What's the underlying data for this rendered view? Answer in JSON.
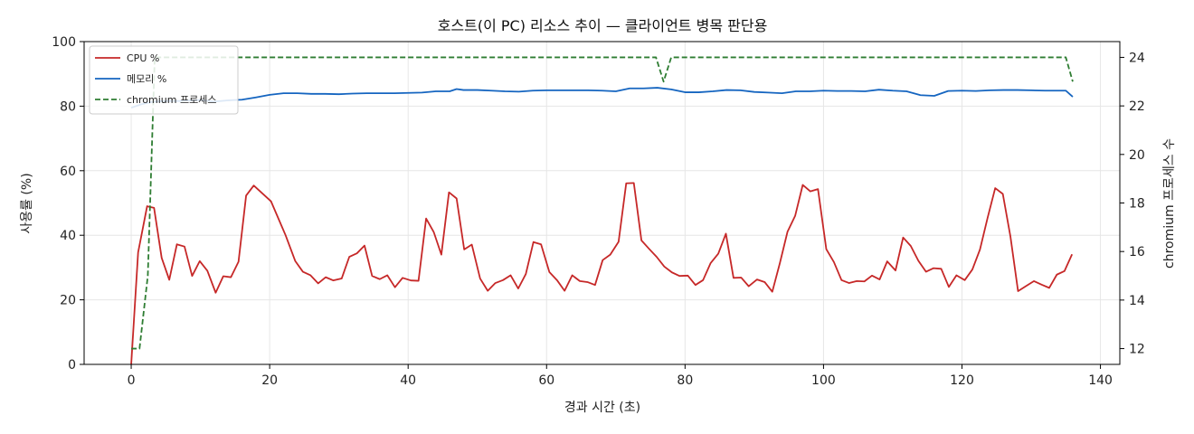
{
  "chart_data": {
    "type": "line",
    "title": "호스트(이 PC) 리소스 추이 — 클라이언트 병목 판단용",
    "xlabel": "경과 시간 (초)",
    "ylabel": "사용률 (%)",
    "y2label": "chromium 프로세스 수",
    "xlim": [
      -6.8,
      142.8
    ],
    "ylim": [
      0,
      100
    ],
    "y2lim": [
      11.35,
      24.65
    ],
    "xticks": [
      "0",
      "20",
      "40",
      "60",
      "80",
      "100",
      "120",
      "140"
    ],
    "yticks": [
      "0",
      "20",
      "40",
      "60",
      "80",
      "100"
    ],
    "y2ticks": [
      "12",
      "14",
      "16",
      "18",
      "20",
      "22",
      "24"
    ],
    "grid": true,
    "legend_position": "top-left",
    "series": [
      {
        "name": "CPU %",
        "axis": "left",
        "color": "#c62828",
        "style": "solid",
        "points": [
          [
            0,
            0
          ],
          [
            1,
            34.7
          ],
          [
            2.3,
            49
          ],
          [
            3.3,
            48.5
          ],
          [
            4.4,
            33
          ],
          [
            5.5,
            26.2
          ],
          [
            6.6,
            37.2
          ],
          [
            7.7,
            36.5
          ],
          [
            8.8,
            27.4
          ],
          [
            9.9,
            32
          ],
          [
            11,
            29
          ],
          [
            12.2,
            22.2
          ],
          [
            13.3,
            27.3
          ],
          [
            14.4,
            27
          ],
          [
            15.5,
            31.8
          ],
          [
            16.6,
            52.3
          ],
          [
            17.7,
            55.4
          ],
          [
            20.2,
            50.5
          ],
          [
            22.3,
            40
          ],
          [
            23.7,
            32
          ],
          [
            24.8,
            28.7
          ],
          [
            25.9,
            27.6
          ],
          [
            27,
            25.1
          ],
          [
            28.1,
            27
          ],
          [
            29.2,
            26
          ],
          [
            30.4,
            26.6
          ],
          [
            31.5,
            33.3
          ],
          [
            32.6,
            34.4
          ],
          [
            33.7,
            36.8
          ],
          [
            34.8,
            27.4
          ],
          [
            35.9,
            26.4
          ],
          [
            37,
            27.6
          ],
          [
            38.1,
            23.9
          ],
          [
            39.2,
            26.8
          ],
          [
            40.4,
            26
          ],
          [
            41.5,
            25.9
          ],
          [
            42.6,
            45.2
          ],
          [
            43.7,
            41
          ],
          [
            44.8,
            34
          ],
          [
            45.9,
            53.3
          ],
          [
            47,
            51.4
          ],
          [
            48.1,
            35.6
          ],
          [
            49.2,
            37.1
          ],
          [
            50.4,
            26.6
          ],
          [
            51.5,
            22.8
          ],
          [
            52.6,
            25.2
          ],
          [
            53.7,
            26.1
          ],
          [
            54.8,
            27.6
          ],
          [
            55.9,
            23.5
          ],
          [
            57,
            28
          ],
          [
            58.1,
            37.9
          ],
          [
            59.2,
            37.2
          ],
          [
            60.4,
            28.6
          ],
          [
            61.5,
            26.1
          ],
          [
            62.6,
            22.8
          ],
          [
            63.7,
            27.6
          ],
          [
            64.8,
            25.8
          ],
          [
            65.9,
            25.5
          ],
          [
            67,
            24.6
          ],
          [
            68.1,
            32.3
          ],
          [
            69.2,
            34
          ],
          [
            70.4,
            38
          ],
          [
            71.5,
            56.1
          ],
          [
            72.6,
            56.2
          ],
          [
            73.7,
            38.4
          ],
          [
            74.8,
            35.8
          ],
          [
            75.9,
            33.3
          ],
          [
            77,
            30.3
          ],
          [
            78.1,
            28.5
          ],
          [
            79.2,
            27.4
          ],
          [
            80.4,
            27.5
          ],
          [
            81.5,
            24.6
          ],
          [
            82.6,
            26.1
          ],
          [
            83.7,
            31.4
          ],
          [
            84.8,
            34.3
          ],
          [
            85.9,
            40.5
          ],
          [
            87,
            26.8
          ],
          [
            88.1,
            26.9
          ],
          [
            89.2,
            24.2
          ],
          [
            90.4,
            26.3
          ],
          [
            91.5,
            25.5
          ],
          [
            92.6,
            22.5
          ],
          [
            93.7,
            31.4
          ],
          [
            94.8,
            41.1
          ],
          [
            95.9,
            46
          ],
          [
            97,
            55.6
          ],
          [
            98.1,
            53.6
          ],
          [
            99.2,
            54.3
          ],
          [
            100.4,
            35.7
          ],
          [
            101.5,
            31.7
          ],
          [
            102.6,
            26.1
          ],
          [
            103.7,
            25.2
          ],
          [
            104.8,
            25.8
          ],
          [
            105.9,
            25.7
          ],
          [
            107,
            27.5
          ],
          [
            108.1,
            26.3
          ],
          [
            109.2,
            31.9
          ],
          [
            110.4,
            29.1
          ],
          [
            111.5,
            39.3
          ],
          [
            112.6,
            36.7
          ],
          [
            113.7,
            32.1
          ],
          [
            114.8,
            28.7
          ],
          [
            115.9,
            29.8
          ],
          [
            117,
            29.6
          ],
          [
            118.1,
            24
          ],
          [
            119.2,
            27.6
          ],
          [
            120.4,
            26.1
          ],
          [
            121.5,
            29.4
          ],
          [
            122.6,
            35.6
          ],
          [
            123.7,
            45.4
          ],
          [
            124.8,
            54.6
          ],
          [
            125.9,
            52.8
          ],
          [
            127,
            39.6
          ],
          [
            128.1,
            22.7
          ],
          [
            129.2,
            24.2
          ],
          [
            130.4,
            25.8
          ],
          [
            131.5,
            24.7
          ],
          [
            132.6,
            23.7
          ],
          [
            133.7,
            27.8
          ],
          [
            134.8,
            28.9
          ],
          [
            135.9,
            34.1
          ]
        ]
      },
      {
        "name": "메모리 %",
        "axis": "left",
        "color": "#1565c0",
        "style": "solid",
        "points": [
          [
            0,
            79.5
          ],
          [
            1.5,
            80.6
          ],
          [
            3,
            81.3
          ],
          [
            5,
            81.6
          ],
          [
            7,
            81.6
          ],
          [
            10,
            81.9
          ],
          [
            12,
            81.4
          ],
          [
            14,
            81.8
          ],
          [
            16,
            82
          ],
          [
            18,
            82.7
          ],
          [
            20,
            83.5
          ],
          [
            22,
            84
          ],
          [
            24,
            84
          ],
          [
            26,
            83.8
          ],
          [
            28,
            83.8
          ],
          [
            30,
            83.7
          ],
          [
            32,
            83.9
          ],
          [
            34,
            84
          ],
          [
            36,
            84
          ],
          [
            38,
            84
          ],
          [
            40,
            84.1
          ],
          [
            42,
            84.2
          ],
          [
            44,
            84.6
          ],
          [
            46,
            84.6
          ],
          [
            47,
            85.3
          ],
          [
            48,
            85
          ],
          [
            50,
            85
          ],
          [
            52,
            84.8
          ],
          [
            54,
            84.6
          ],
          [
            56,
            84.5
          ],
          [
            58,
            84.8
          ],
          [
            60,
            84.9
          ],
          [
            62,
            84.9
          ],
          [
            64,
            84.9
          ],
          [
            66,
            84.9
          ],
          [
            68,
            84.8
          ],
          [
            70,
            84.6
          ],
          [
            72,
            85.5
          ],
          [
            74,
            85.5
          ],
          [
            76,
            85.7
          ],
          [
            78,
            85.2
          ],
          [
            80,
            84.3
          ],
          [
            82,
            84.3
          ],
          [
            84,
            84.6
          ],
          [
            86,
            85
          ],
          [
            88,
            84.9
          ],
          [
            90,
            84.4
          ],
          [
            92,
            84.2
          ],
          [
            94,
            84
          ],
          [
            96,
            84.6
          ],
          [
            98,
            84.6
          ],
          [
            100,
            84.8
          ],
          [
            102,
            84.7
          ],
          [
            104,
            84.7
          ],
          [
            106,
            84.6
          ],
          [
            108,
            85.1
          ],
          [
            110,
            84.8
          ],
          [
            112,
            84.6
          ],
          [
            114,
            83.4
          ],
          [
            116,
            83.2
          ],
          [
            118,
            84.7
          ],
          [
            120,
            84.8
          ],
          [
            122,
            84.7
          ],
          [
            124,
            84.9
          ],
          [
            126,
            85
          ],
          [
            128,
            85
          ],
          [
            130,
            84.9
          ],
          [
            132,
            84.8
          ],
          [
            134,
            84.8
          ],
          [
            135,
            84.8
          ],
          [
            136,
            82.9
          ]
        ]
      },
      {
        "name": "chromium 프로세스",
        "axis": "right",
        "color": "#2e7d32",
        "style": "dashed",
        "points": [
          [
            0,
            12
          ],
          [
            1.2,
            12
          ],
          [
            2.4,
            15
          ],
          [
            3.4,
            24
          ],
          [
            75.8,
            24
          ],
          [
            76.9,
            23
          ],
          [
            78,
            24
          ],
          [
            135,
            24
          ],
          [
            136,
            23
          ]
        ]
      }
    ]
  }
}
